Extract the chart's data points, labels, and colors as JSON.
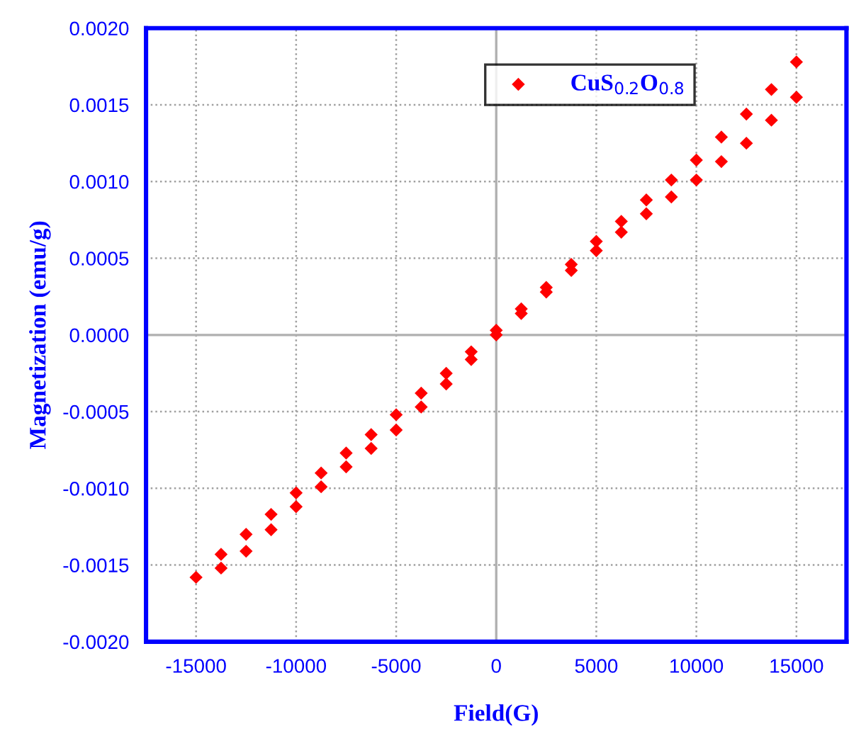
{
  "chart_data": {
    "type": "scatter",
    "xlabel": "Field(G)",
    "ylabel": "Magnetization (emu/g)",
    "series": [
      {
        "name": "CuS$_{0.2}$O$_{0.8}$",
        "color": "#ff0000",
        "x": [
          -15000,
          -13750,
          -12500,
          -11250,
          -10000,
          -8750,
          -7500,
          -6250,
          -5000,
          -3750,
          -2500,
          -1250,
          0,
          1250,
          2500,
          3750,
          5000,
          6250,
          7500,
          8750,
          10000,
          11250,
          12500,
          13750,
          15000
        ],
        "values": [
          -0.00158,
          -0.00143,
          -0.0013,
          -0.00117,
          -0.00103,
          -0.0009,
          -0.00077,
          -0.00065,
          -0.00052,
          -0.00038,
          -0.00025,
          -0.00011,
          3e-05,
          0.00017,
          0.00031,
          0.00046,
          0.00061,
          0.00074,
          0.00088,
          0.00101,
          0.00114,
          0.00129,
          0.00144,
          0.0016,
          0.00178
        ]
      },
      {
        "color": "#ff0000",
        "x": [
          -13750,
          -12500,
          -11250,
          -10000,
          -8750,
          -7500,
          -6250,
          -5000,
          -3750,
          -2500,
          -1250,
          0,
          1250,
          2500,
          3750,
          5000,
          6250,
          7500,
          8750,
          10000,
          11250,
          12500,
          13750,
          15000
        ],
        "values": [
          -0.00152,
          -0.00141,
          -0.00127,
          -0.00112,
          -0.00099,
          -0.00086,
          -0.00074,
          -0.00062,
          -0.00047,
          -0.00032,
          -0.00016,
          0.0,
          0.00014,
          0.00028,
          0.00042,
          0.00055,
          0.00067,
          0.00079,
          0.0009,
          0.00101,
          0.00113,
          0.00125,
          0.0014,
          0.00155
        ]
      }
    ],
    "xlim": [
      -17500,
      17500
    ],
    "xticks": [
      -15000,
      -10000,
      -5000,
      0,
      5000,
      10000,
      15000
    ],
    "ylim": [
      -0.002,
      0.002
    ],
    "yticks": [
      {
        "value": -0.002,
        "label": "-0.0020"
      },
      {
        "value": -0.0015,
        "label": "-0.0015"
      },
      {
        "value": -0.001,
        "label": "-0.0010"
      },
      {
        "value": -0.0005,
        "label": "-0.0005"
      },
      {
        "value": 0,
        "label": "0.0000"
      },
      {
        "value": 0.0005,
        "label": "0.0005"
      },
      {
        "value": 0.001,
        "label": "0.0010"
      },
      {
        "value": 0.0015,
        "label": "0.0015"
      },
      {
        "value": 0.002,
        "label": "0.0020"
      }
    ],
    "grid": true,
    "legend": "top right",
    "marker": "diamond"
  }
}
